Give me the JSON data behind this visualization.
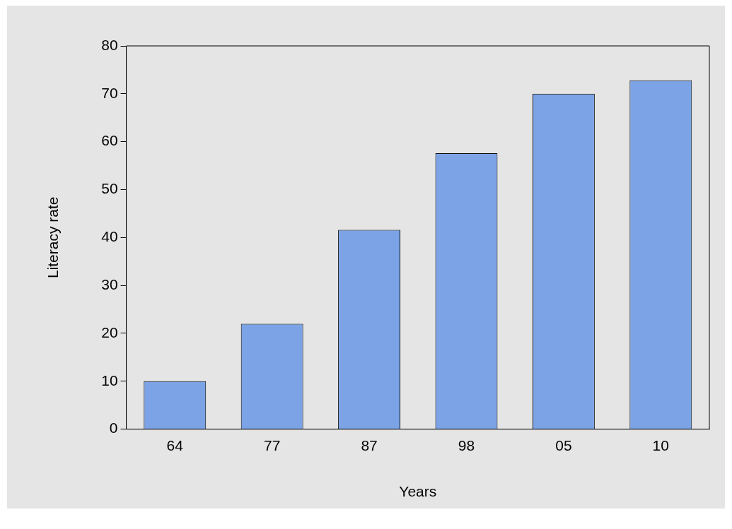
{
  "chart_data": {
    "type": "bar",
    "xlabel": "Years",
    "ylabel": "Literacy rate",
    "categories": [
      "64",
      "77",
      "87",
      "98",
      "05",
      "10"
    ],
    "values": [
      10,
      22,
      41.6,
      57.6,
      70,
      72.8
    ],
    "color": "#7ba3e6",
    "ylim": [
      0,
      80
    ],
    "yticks": [
      0,
      10,
      20,
      30,
      40,
      50,
      60,
      70,
      80
    ],
    "grid": false,
    "legend": false
  }
}
